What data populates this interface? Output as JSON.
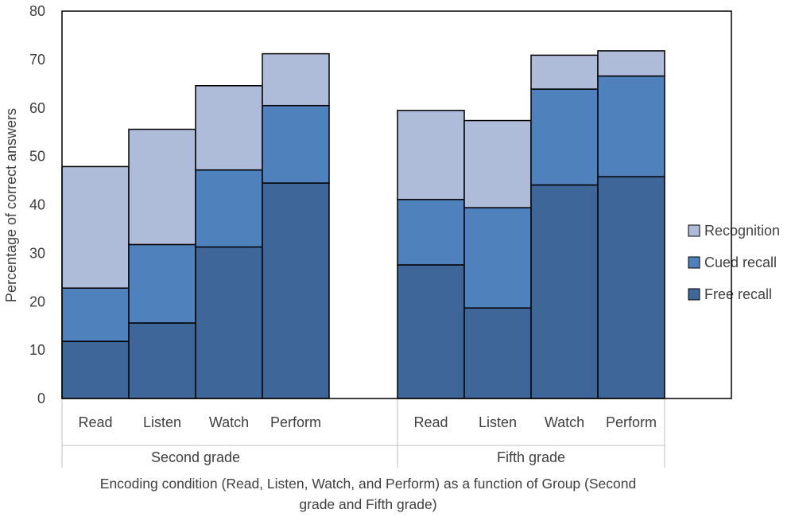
{
  "colors": {
    "Free recall": "#3f6699",
    "Cued recall": "#4f81bd",
    "Recognition": "#aebcd9",
    "axis": "#bfbfbf",
    "text": "#404040",
    "bar_edge": "#000000"
  },
  "chart_data": {
    "type": "bar",
    "stacked": true,
    "ylabel": "Percentage of correct answers",
    "xlabel_lines": [
      "Encoding condition (Read, Listen, Watch, and Perform) as a function of Group (Second",
      "grade and Fifth grade)"
    ],
    "ylim": [
      0,
      80
    ],
    "yticks": [
      "0",
      "10",
      "20",
      "30",
      "40",
      "50",
      "60",
      "70",
      "80"
    ],
    "groups": [
      {
        "name": "Second grade",
        "categories": [
          "Read",
          "Listen",
          "Watch",
          "Perform"
        ],
        "totals": [
          47.9,
          55.6,
          64.6,
          71.2
        ],
        "segments": {
          "Free recall": [
            11.8,
            15.6,
            31.3,
            44.5
          ],
          "Cued recall": [
            11.0,
            16.2,
            15.9,
            16.0
          ],
          "Recognition": [
            25.1,
            23.8,
            17.4,
            10.7
          ]
        }
      },
      {
        "name": "Fifth grade",
        "categories": [
          "Read",
          "Listen",
          "Watch",
          "Perform"
        ],
        "totals": [
          59.5,
          57.4,
          70.9,
          71.8
        ],
        "segments": {
          "Free recall": [
            27.6,
            18.7,
            44.1,
            45.8
          ],
          "Cued recall": [
            13.5,
            20.7,
            19.8,
            20.8
          ],
          "Recognition": [
            18.4,
            18.0,
            7.0,
            5.2
          ]
        }
      }
    ],
    "series_order": [
      "Free recall",
      "Cued recall",
      "Recognition"
    ],
    "legend": [
      "Recognition",
      "Cued recall",
      "Free recall"
    ],
    "legend_position": "right"
  }
}
